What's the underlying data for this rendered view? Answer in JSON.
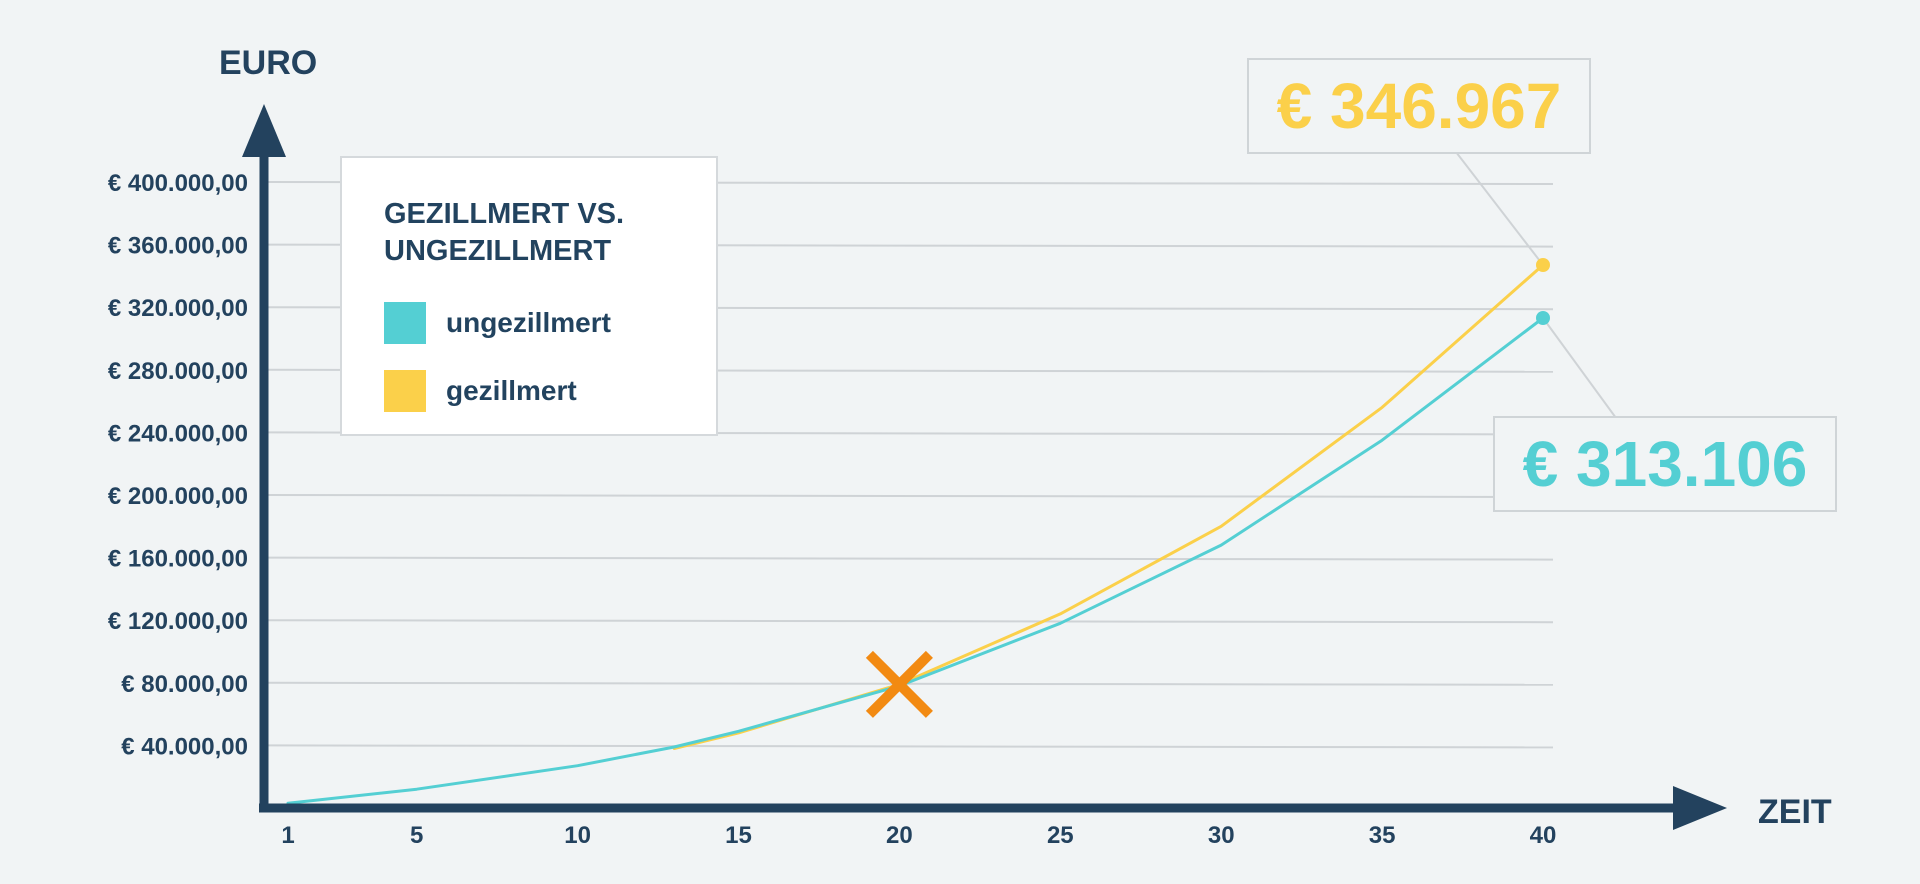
{
  "colors": {
    "axis": "#23425e",
    "grid": "#cfd3d6",
    "gezillmert": "#fbd04a",
    "ungezillmert": "#54cfd3",
    "marker": "#f28a12"
  },
  "chart_data": {
    "type": "line",
    "title": "GEZILLMERT VS. UNGEZILLMERT",
    "xlabel": "ZEIT",
    "ylabel": "EURO",
    "xlim": [
      1,
      40
    ],
    "ylim": [
      0,
      400000
    ],
    "x_ticks": [
      1,
      5,
      10,
      15,
      20,
      25,
      30,
      35,
      40
    ],
    "y_ticks": [
      40000,
      80000,
      120000,
      160000,
      200000,
      240000,
      280000,
      320000,
      360000,
      400000
    ],
    "y_tick_labels": [
      "€ 40.000,00",
      "€ 80.000,00",
      "€ 120.000,00",
      "€ 160.000,00",
      "€ 200.000,00",
      "€ 240.000,00",
      "€ 280.000,00",
      "€ 320.000,00",
      "€ 360.000,00",
      "€ 400.000,00"
    ],
    "x": [
      1,
      5,
      10,
      13,
      15,
      20,
      25,
      30,
      35,
      40
    ],
    "series": [
      {
        "name": "ungezillmert",
        "values": [
          3000,
          12000,
          27000,
          39000,
          49000,
          78000,
          118000,
          168000,
          235000,
          313106
        ]
      },
      {
        "name": "gezillmert",
        "values": [
          null,
          null,
          null,
          38000,
          48000,
          79000,
          124000,
          180000,
          256000,
          346967
        ]
      }
    ],
    "legend": {
      "position": "top-left",
      "title": "GEZILLMERT VS. UNGEZILLMERT"
    },
    "marker": {
      "x": 20,
      "y": 79000,
      "symbol": "cross"
    },
    "annotations": [
      {
        "series": "gezillmert",
        "x": 40,
        "text": "€ 346.967"
      },
      {
        "series": "ungezillmert",
        "x": 40,
        "text": "€ 313.106"
      }
    ],
    "grid": true
  }
}
